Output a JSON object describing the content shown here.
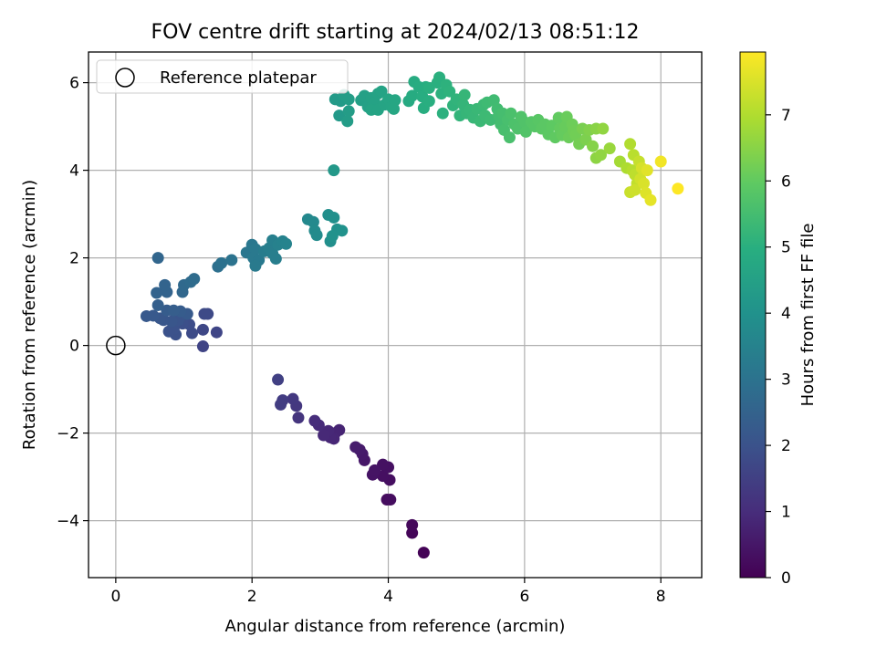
{
  "chart_data": {
    "type": "scatter",
    "title": "FOV centre drift starting at 2024/02/13 08:51:12",
    "xlabel": "Angular distance from reference (arcmin)",
    "ylabel": "Rotation from reference (arcmin)",
    "xlim": [
      -0.4,
      8.6
    ],
    "ylim": [
      -5.3,
      6.7
    ],
    "xticks": [
      0,
      2,
      4,
      6,
      8
    ],
    "yticks": [
      -4,
      -2,
      0,
      2,
      4,
      6
    ],
    "xtick_labels": [
      "0",
      "2",
      "4",
      "6",
      "8"
    ],
    "ytick_labels": [
      "−4",
      "−2",
      "0",
      "2",
      "4",
      "6"
    ],
    "grid": true,
    "legend": {
      "position": "top-left",
      "entries": [
        {
          "label": "Reference platepar",
          "marker": "open-circle"
        }
      ]
    },
    "reference_point": {
      "x": 0,
      "y": 0
    },
    "colorbar": {
      "label": "Hours from first FF file",
      "colormap": "viridis",
      "range": [
        0,
        7.95
      ],
      "ticks": [
        0,
        1,
        2,
        3,
        4,
        5,
        6,
        7
      ],
      "tick_labels": [
        "0",
        "1",
        "2",
        "3",
        "4",
        "5",
        "6",
        "7"
      ]
    },
    "points": [
      [
        4.52,
        -4.73,
        0.05
      ],
      [
        4.35,
        -4.28,
        0.1
      ],
      [
        4.35,
        -4.1,
        0.15
      ],
      [
        3.98,
        -3.52,
        0.25
      ],
      [
        4.03,
        -3.52,
        0.28
      ],
      [
        4.02,
        -3.07,
        0.3
      ],
      [
        3.92,
        -2.98,
        0.32
      ],
      [
        4.0,
        -2.78,
        0.35
      ],
      [
        3.92,
        -2.72,
        0.36
      ],
      [
        3.77,
        -2.95,
        0.4
      ],
      [
        3.8,
        -2.85,
        0.42
      ],
      [
        3.65,
        -2.62,
        0.5
      ],
      [
        3.62,
        -2.48,
        0.55
      ],
      [
        3.58,
        -2.38,
        0.58
      ],
      [
        3.52,
        -2.32,
        0.6
      ],
      [
        3.28,
        -1.93,
        0.8
      ],
      [
        3.22,
        -2.0,
        0.82
      ],
      [
        3.2,
        -2.13,
        0.85
      ],
      [
        3.15,
        -2.1,
        0.86
      ],
      [
        3.12,
        -1.95,
        0.88
      ],
      [
        3.05,
        -2.05,
        0.9
      ],
      [
        2.98,
        -1.82,
        0.95
      ],
      [
        2.92,
        -1.72,
        1.0
      ],
      [
        2.68,
        -1.65,
        1.2
      ],
      [
        2.65,
        -1.38,
        1.25
      ],
      [
        2.6,
        -1.22,
        1.3
      ],
      [
        2.45,
        -1.25,
        1.4
      ],
      [
        2.42,
        -1.35,
        1.42
      ],
      [
        2.38,
        -0.78,
        1.5
      ],
      [
        1.28,
        -0.02,
        1.6
      ],
      [
        1.48,
        0.3,
        1.65
      ],
      [
        1.28,
        0.36,
        1.7
      ],
      [
        1.35,
        0.72,
        1.75
      ],
      [
        1.3,
        0.72,
        1.76
      ],
      [
        1.12,
        0.28,
        1.8
      ],
      [
        1.08,
        0.48,
        1.85
      ],
      [
        0.98,
        0.5,
        1.9
      ],
      [
        0.88,
        0.25,
        1.95
      ],
      [
        0.85,
        0.38,
        2.0
      ],
      [
        0.78,
        0.32,
        2.0
      ],
      [
        0.92,
        0.58,
        2.05
      ],
      [
        0.88,
        0.72,
        2.05
      ],
      [
        0.82,
        0.55,
        2.1
      ],
      [
        0.7,
        0.58,
        2.1
      ],
      [
        0.65,
        0.62,
        2.15
      ],
      [
        0.55,
        0.68,
        2.2
      ],
      [
        0.45,
        0.67,
        2.2
      ],
      [
        1.05,
        0.72,
        2.25
      ],
      [
        0.95,
        0.78,
        2.3
      ],
      [
        0.75,
        0.8,
        2.3
      ],
      [
        0.85,
        0.8,
        2.35
      ],
      [
        0.62,
        0.92,
        2.4
      ],
      [
        0.75,
        1.22,
        2.5
      ],
      [
        0.6,
        1.2,
        2.5
      ],
      [
        0.72,
        1.38,
        2.55
      ],
      [
        0.62,
        2.0,
        2.6
      ],
      [
        0.98,
        1.22,
        2.65
      ],
      [
        1.0,
        1.38,
        2.7
      ],
      [
        1.1,
        1.45,
        2.75
      ],
      [
        1.15,
        1.52,
        2.8
      ],
      [
        1.5,
        1.8,
        2.9
      ],
      [
        1.55,
        1.88,
        2.95
      ],
      [
        1.7,
        1.95,
        3.0
      ],
      [
        1.92,
        2.12,
        3.1
      ],
      [
        2.0,
        2.3,
        3.15
      ],
      [
        2.05,
        2.2,
        3.2
      ],
      [
        2.02,
        2.0,
        3.2
      ],
      [
        2.1,
        1.95,
        3.22
      ],
      [
        2.05,
        1.82,
        3.25
      ],
      [
        2.18,
        2.15,
        3.3
      ],
      [
        2.25,
        2.22,
        3.35
      ],
      [
        2.3,
        2.1,
        3.35
      ],
      [
        2.35,
        1.98,
        3.38
      ],
      [
        2.3,
        2.4,
        3.4
      ],
      [
        2.38,
        2.3,
        3.45
      ],
      [
        2.45,
        2.38,
        3.5
      ],
      [
        2.5,
        2.32,
        3.52
      ],
      [
        2.82,
        2.88,
        3.7
      ],
      [
        2.9,
        2.82,
        3.72
      ],
      [
        2.92,
        2.62,
        3.75
      ],
      [
        2.95,
        2.52,
        3.78
      ],
      [
        3.15,
        2.38,
        3.9
      ],
      [
        3.12,
        2.98,
        3.92
      ],
      [
        3.2,
        2.92,
        3.95
      ],
      [
        3.25,
        2.65,
        3.98
      ],
      [
        3.32,
        2.62,
        4.0
      ],
      [
        3.18,
        2.5,
        4.0
      ],
      [
        3.2,
        4.0,
        4.2
      ],
      [
        3.28,
        5.25,
        4.25
      ],
      [
        3.3,
        5.58,
        4.3
      ],
      [
        3.22,
        5.62,
        4.3
      ],
      [
        3.4,
        5.12,
        4.35
      ],
      [
        3.42,
        5.35,
        4.35
      ],
      [
        3.35,
        5.72,
        4.38
      ],
      [
        3.42,
        5.62,
        4.4
      ],
      [
        3.6,
        5.6,
        4.45
      ],
      [
        3.65,
        5.7,
        4.48
      ],
      [
        3.7,
        5.45,
        4.5
      ],
      [
        3.75,
        5.65,
        4.52
      ],
      [
        3.8,
        5.55,
        4.55
      ],
      [
        3.85,
        5.75,
        4.55
      ],
      [
        3.9,
        5.8,
        4.58
      ],
      [
        3.75,
        5.38,
        4.6
      ],
      [
        3.85,
        5.38,
        4.6
      ],
      [
        3.95,
        5.5,
        4.62
      ],
      [
        4.0,
        5.62,
        4.65
      ],
      [
        4.05,
        5.45,
        4.65
      ],
      [
        4.1,
        5.6,
        4.68
      ],
      [
        4.08,
        5.4,
        4.7
      ],
      [
        4.3,
        5.58,
        4.8
      ],
      [
        4.35,
        5.7,
        4.85
      ],
      [
        4.38,
        6.02,
        4.88
      ],
      [
        4.45,
        5.9,
        4.9
      ],
      [
        4.5,
        5.68,
        4.92
      ],
      [
        4.55,
        5.9,
        4.95
      ],
      [
        4.52,
        5.42,
        4.95
      ],
      [
        4.6,
        5.58,
        4.98
      ],
      [
        4.6,
        5.88,
        5.0
      ],
      [
        4.72,
        6.0,
        5.0
      ],
      [
        4.75,
        6.12,
        5.02
      ],
      [
        4.78,
        5.75,
        5.05
      ],
      [
        4.8,
        5.3,
        5.05
      ],
      [
        4.85,
        5.95,
        5.08
      ],
      [
        4.9,
        5.8,
        5.1
      ],
      [
        4.95,
        5.48,
        5.12
      ],
      [
        5.0,
        5.62,
        5.15
      ],
      [
        5.05,
        5.25,
        5.18
      ],
      [
        5.1,
        5.5,
        5.2
      ],
      [
        5.12,
        5.72,
        5.22
      ],
      [
        5.15,
        5.3,
        5.22
      ],
      [
        5.2,
        5.38,
        5.25
      ],
      [
        5.25,
        5.2,
        5.28
      ],
      [
        5.3,
        5.4,
        5.3
      ],
      [
        5.35,
        5.12,
        5.32
      ],
      [
        5.4,
        5.5,
        5.35
      ],
      [
        5.42,
        5.25,
        5.38
      ],
      [
        5.45,
        5.55,
        5.4
      ],
      [
        5.5,
        5.15,
        5.4
      ],
      [
        5.55,
        5.6,
        5.42
      ],
      [
        5.6,
        5.4,
        5.45
      ],
      [
        5.62,
        5.25,
        5.48
      ],
      [
        5.65,
        5.05,
        5.5
      ],
      [
        5.68,
        5.3,
        5.52
      ],
      [
        5.7,
        4.92,
        5.55
      ],
      [
        5.75,
        5.15,
        5.58
      ],
      [
        5.78,
        4.75,
        5.6
      ],
      [
        5.8,
        5.3,
        5.62
      ],
      [
        5.85,
        5.05,
        5.65
      ],
      [
        5.9,
        4.95,
        5.68
      ],
      [
        5.95,
        5.22,
        5.7
      ],
      [
        6.0,
        5.1,
        5.72
      ],
      [
        6.02,
        4.88,
        5.75
      ],
      [
        6.1,
        5.1,
        5.8
      ],
      [
        6.15,
        5.0,
        5.82
      ],
      [
        6.2,
        5.15,
        5.85
      ],
      [
        6.25,
        4.95,
        5.88
      ],
      [
        6.3,
        5.05,
        5.9
      ],
      [
        6.35,
        4.82,
        5.92
      ],
      [
        6.4,
        5.02,
        5.95
      ],
      [
        6.45,
        4.75,
        5.98
      ],
      [
        6.5,
        5.2,
        6.0
      ],
      [
        6.52,
        4.95,
        6.02
      ],
      [
        6.55,
        4.8,
        6.05
      ],
      [
        6.6,
        5.0,
        6.08
      ],
      [
        6.62,
        5.22,
        6.1
      ],
      [
        6.65,
        4.75,
        6.12
      ],
      [
        6.7,
        5.05,
        6.15
      ],
      [
        6.72,
        4.9,
        6.18
      ],
      [
        6.75,
        4.8,
        6.2
      ],
      [
        6.8,
        4.6,
        6.25
      ],
      [
        6.85,
        4.95,
        6.3
      ],
      [
        6.9,
        4.7,
        6.35
      ],
      [
        6.95,
        4.92,
        6.4
      ],
      [
        7.0,
        4.55,
        6.45
      ],
      [
        7.05,
        4.95,
        6.5
      ],
      [
        7.05,
        4.28,
        6.55
      ],
      [
        7.12,
        4.35,
        6.6
      ],
      [
        7.15,
        4.95,
        6.6
      ],
      [
        7.25,
        4.5,
        6.7
      ],
      [
        7.4,
        4.2,
        6.85
      ],
      [
        7.5,
        4.05,
        6.95
      ],
      [
        7.55,
        4.6,
        7.0
      ],
      [
        7.58,
        4.0,
        7.05
      ],
      [
        7.6,
        4.35,
        7.1
      ],
      [
        7.62,
        3.9,
        7.15
      ],
      [
        7.65,
        3.7,
        7.2
      ],
      [
        7.68,
        4.2,
        7.25
      ],
      [
        7.55,
        3.5,
        7.3
      ],
      [
        7.62,
        3.55,
        7.35
      ],
      [
        7.7,
        3.8,
        7.4
      ],
      [
        7.72,
        4.05,
        7.45
      ],
      [
        7.75,
        3.7,
        7.5
      ],
      [
        7.78,
        3.48,
        7.55
      ],
      [
        7.8,
        4.0,
        7.6
      ],
      [
        7.85,
        3.32,
        7.65
      ],
      [
        8.0,
        4.2,
        7.8
      ],
      [
        8.25,
        3.58,
        7.95
      ]
    ]
  }
}
